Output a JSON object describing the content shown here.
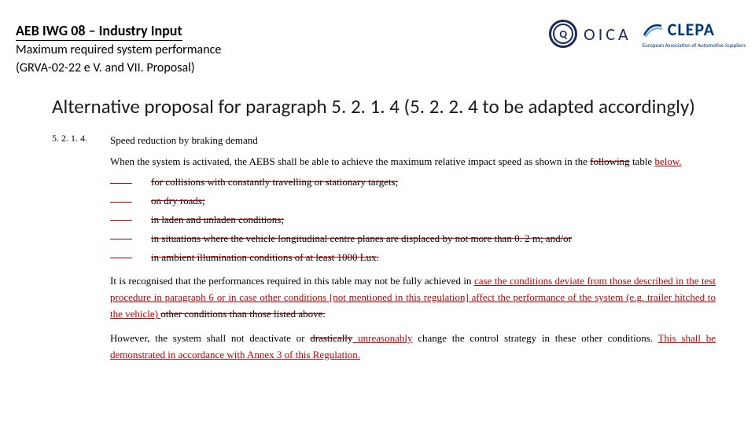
{
  "header": {
    "doc_id": "AEB IWG 08 – Industry Input",
    "doc_sub_line1": "Maximum required system performance",
    "doc_sub_line2": "(GRVA-02-22 e V. and VII. Proposal)"
  },
  "logos": {
    "oica": {
      "emblem_letter": "Q",
      "text": "OICA"
    },
    "clepa": {
      "text": "CLEPA",
      "sub": "European Association of Automotive Suppliers"
    }
  },
  "heading": "Alternative proposal for paragraph 5. 2. 1. 4 (5. 2. 2. 4 to be adapted accordingly)",
  "para": {
    "num": "5. 2. 1. 4.",
    "title": "Speed reduction by braking demand",
    "intro_a": "When the system is activated, the AEBS shall be able to achieve the maximum relative impact speed as shown in the ",
    "intro_del": "following",
    "intro_b": " table ",
    "intro_ins": "below.",
    "bullets": [
      "for collisions with constantly travelling or stationary targets;",
      "on dry roads;",
      "in laden and unladen conditions;",
      "in situations where the vehicle longitudinal centre planes are displaced by not more than 0. 2 m; and/or",
      "in ambient illumination conditions of at least 1000 Lux."
    ],
    "rec_a": "It is recognised that the performances required in this table may not be fully achieved in ",
    "rec_ins1": "case the conditions deviate from those described in the test procedure in paragraph 6 or in case other conditions [not mentioned in this regulation] affect the performance of the system (e.g. trailer hitched to the vehicle) ",
    "rec_del1": "other conditions than those listed above.",
    "however_a": "However, the system shall not deactivate or ",
    "however_del": "drastically",
    "however_ins": " unreasonably",
    "however_b": " change the control strategy in these other conditions. ",
    "however_ins2": "This shall be demonstrated in accordance with Annex 3 of this Regulation."
  }
}
